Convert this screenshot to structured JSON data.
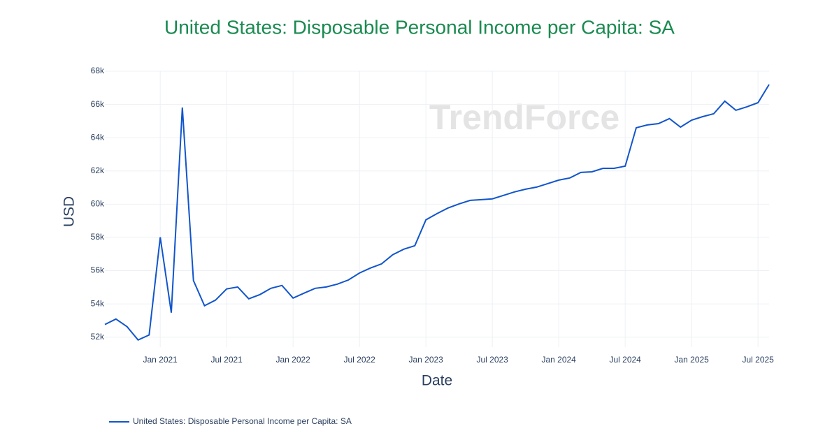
{
  "chart_data": {
    "type": "line",
    "title": "United States: Disposable Personal Income per Capita: SA",
    "x_label": "Date",
    "y_label": "USD",
    "watermark": "TrendForce",
    "x": [
      "2020-08",
      "2020-09",
      "2020-10",
      "2020-11",
      "2020-12",
      "2021-01",
      "2021-02",
      "2021-03",
      "2021-04",
      "2021-05",
      "2021-06",
      "2021-07",
      "2021-08",
      "2021-09",
      "2021-10",
      "2021-11",
      "2021-12",
      "2022-01",
      "2022-02",
      "2022-03",
      "2022-04",
      "2022-05",
      "2022-06",
      "2022-07",
      "2022-08",
      "2022-09",
      "2022-10",
      "2022-11",
      "2022-12",
      "2023-01",
      "2023-02",
      "2023-03",
      "2023-04",
      "2023-05",
      "2023-06",
      "2023-07",
      "2023-08",
      "2023-09",
      "2023-10",
      "2023-11",
      "2023-12",
      "2024-01",
      "2024-02",
      "2024-03",
      "2024-04",
      "2024-05",
      "2024-06",
      "2024-07",
      "2024-08",
      "2024-09",
      "2024-10",
      "2024-11",
      "2024-12",
      "2025-01",
      "2025-02",
      "2025-03",
      "2025-04",
      "2025-05",
      "2025-06",
      "2025-07",
      "2025-08"
    ],
    "series": [
      {
        "name": "United States: Disposable Personal Income per Capita: SA",
        "color": "#1155cc",
        "values": [
          52760,
          53090,
          52630,
          51830,
          52130,
          58010,
          53470,
          65820,
          55400,
          53890,
          54230,
          54900,
          55020,
          54310,
          54560,
          54940,
          55110,
          54350,
          54650,
          54940,
          55020,
          55190,
          55440,
          55860,
          56160,
          56410,
          56960,
          57290,
          57500,
          59060,
          59430,
          59770,
          60020,
          60230,
          60270,
          60320,
          60530,
          60740,
          60900,
          61030,
          61240,
          61450,
          61580,
          61910,
          61950,
          62160,
          62160,
          62290,
          64600,
          64770,
          64850,
          65150,
          64640,
          65060,
          65270,
          65440,
          66200,
          65650,
          65860,
          66110,
          67200
        ]
      }
    ],
    "xlim": [
      "2020-08",
      "2025-08"
    ],
    "xticks": [
      {
        "value": "2021-01",
        "label": "Jan 2021"
      },
      {
        "value": "2021-07",
        "label": "Jul 2021"
      },
      {
        "value": "2022-01",
        "label": "Jan 2022"
      },
      {
        "value": "2022-07",
        "label": "Jul 2022"
      },
      {
        "value": "2023-01",
        "label": "Jan 2023"
      },
      {
        "value": "2023-07",
        "label": "Jul 2023"
      },
      {
        "value": "2024-01",
        "label": "Jan 2024"
      },
      {
        "value": "2024-07",
        "label": "Jul 2024"
      },
      {
        "value": "2025-01",
        "label": "Jan 2025"
      },
      {
        "value": "2025-07",
        "label": "Jul 2025"
      }
    ],
    "ylim": [
      51400,
      68000
    ],
    "yticks": [
      {
        "value": 52000,
        "label": "52k"
      },
      {
        "value": 54000,
        "label": "54k"
      },
      {
        "value": 56000,
        "label": "56k"
      },
      {
        "value": 58000,
        "label": "58k"
      },
      {
        "value": 60000,
        "label": "60k"
      },
      {
        "value": 62000,
        "label": "62k"
      },
      {
        "value": 64000,
        "label": "64k"
      },
      {
        "value": 66000,
        "label": "66k"
      },
      {
        "value": 68000,
        "label": "68k"
      }
    ],
    "grid": true,
    "title_color": "#1a8a50"
  }
}
